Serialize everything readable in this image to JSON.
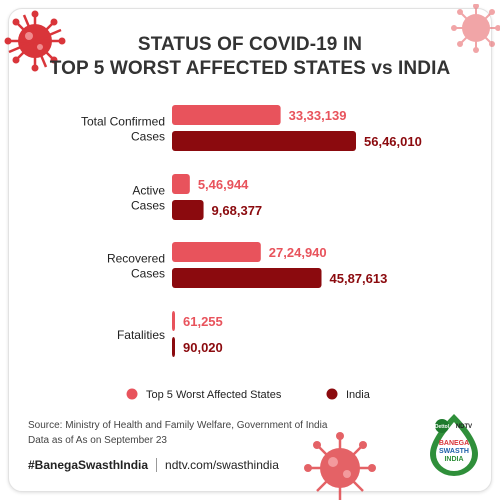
{
  "title_line1": "STATUS OF COVID-19 IN",
  "title_line2": "TOP 5 WORST AFFECTED STATES vs INDIA",
  "colors": {
    "states": "#e8535c",
    "india": "#8b0a0e",
    "states_label": "#e8535c",
    "india_label": "#8b0a0e"
  },
  "chart_data": {
    "type": "bar",
    "orientation": "horizontal",
    "categories": [
      "Total Confirmed Cases",
      "Active Cases",
      "Recovered Cases",
      "Fatalities"
    ],
    "category_lines": [
      [
        "Total Confirmed",
        "Cases"
      ],
      [
        "Active",
        "Cases"
      ],
      [
        "Recovered",
        "Cases"
      ],
      [
        "Fatalities"
      ]
    ],
    "series": [
      {
        "name": "Top 5 Worst Affected States",
        "values": [
          3333139,
          546944,
          2724940,
          61255
        ],
        "labels": [
          "33,33,139",
          "5,46,944",
          "27,24,940",
          "61,255"
        ]
      },
      {
        "name": "India",
        "values": [
          5646010,
          968377,
          4587613,
          90020
        ],
        "labels": [
          "56,46,010",
          "9,68,377",
          "45,87,613",
          "90,020"
        ]
      }
    ],
    "legend_position": "bottom",
    "grid": false
  },
  "source_line1": "Source: Ministry of Health and Family Welfare, Government of India",
  "source_line2": "Data as of As on September 23",
  "footer": {
    "hashtag": "#BanegaSwasthIndia",
    "url": "ndtv.com/swasthindia"
  },
  "logo": {
    "brand_top": "Dettol",
    "brand_ndtv": "NDTV",
    "line1": "BANEGA",
    "line2": "SWASTH",
    "line3": "INDIA"
  }
}
